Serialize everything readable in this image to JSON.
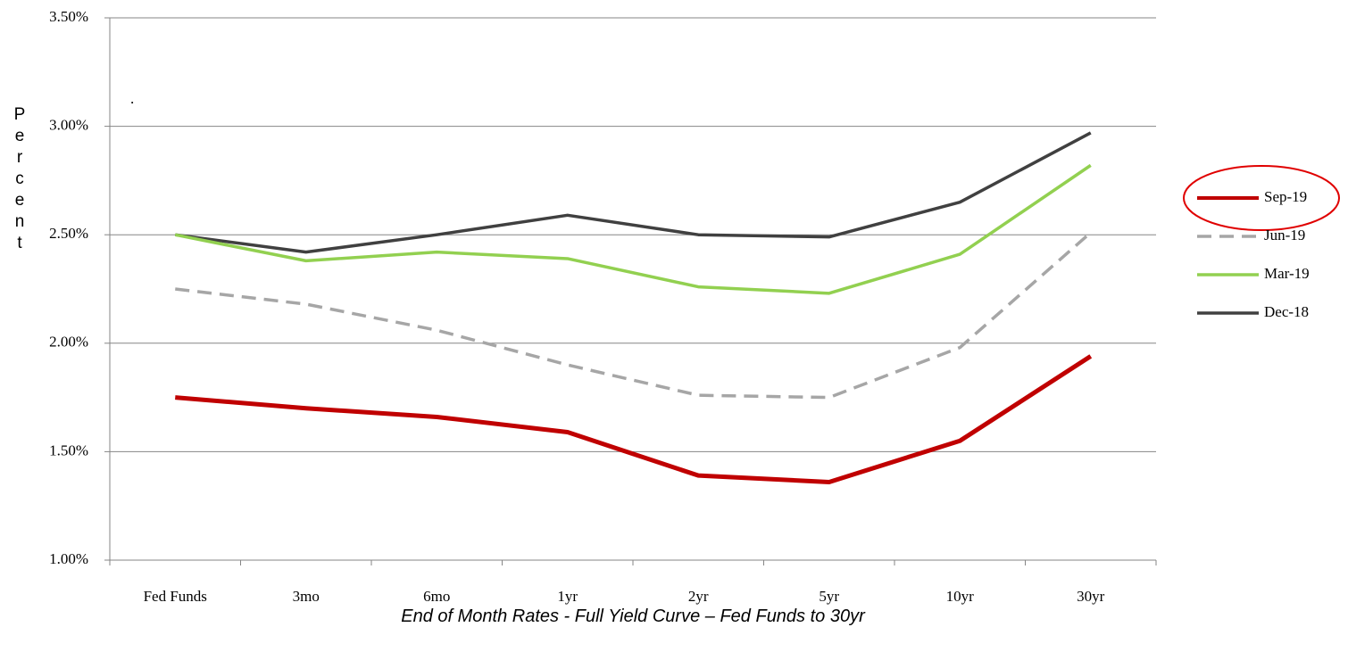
{
  "chart_data": {
    "type": "line",
    "title": "End of Month Rates - Full Yield Curve – Fed Funds to 30yr",
    "y_label": "Percent",
    "annotation": ".",
    "categories": [
      "Fed Funds",
      "3mo",
      "6mo",
      "1yr",
      "2yr",
      "5yr",
      "10yr",
      "30yr"
    ],
    "series": [
      {
        "name": "Sep-19",
        "color": "#c00000",
        "values": [
          1.75,
          1.7,
          1.66,
          1.59,
          1.39,
          1.36,
          1.55,
          1.94
        ]
      },
      {
        "name": "Jun-19",
        "color": "#a6a6a6",
        "dashed": true,
        "values": [
          2.25,
          2.18,
          2.06,
          1.9,
          1.76,
          1.75,
          1.98,
          2.51
        ]
      },
      {
        "name": "Mar-19",
        "color": "#92d050",
        "values": [
          2.5,
          2.38,
          2.42,
          2.39,
          2.26,
          2.23,
          2.41,
          2.82
        ]
      },
      {
        "name": "Dec-18",
        "color": "#404040",
        "values": [
          2.5,
          2.42,
          2.5,
          2.59,
          2.5,
          2.49,
          2.65,
          2.97
        ]
      }
    ],
    "ylim": [
      1.0,
      3.5
    ],
    "yticks": [
      {
        "value": 1.0,
        "label": "1.00%"
      },
      {
        "value": 1.5,
        "label": "1.50%"
      },
      {
        "value": 2.0,
        "label": "2.00%"
      },
      {
        "value": 2.5,
        "label": "2.50%"
      },
      {
        "value": 3.0,
        "label": "3.00%"
      },
      {
        "value": 3.5,
        "label": "3.50%"
      }
    ],
    "grid": true,
    "legend": "right"
  }
}
